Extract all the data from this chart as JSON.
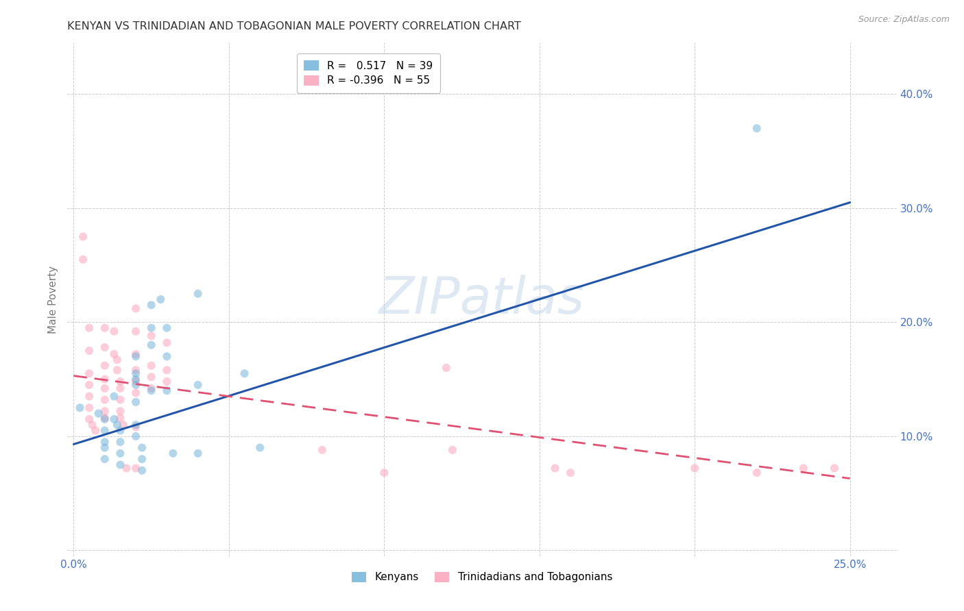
{
  "title": "KENYAN VS TRINIDADIAN AND TOBAGONIAN MALE POVERTY CORRELATION CHART",
  "source": "Source: ZipAtlas.com",
  "ylabel": "Male Poverty",
  "watermark": "ZIPatlas",
  "x_ticks": [
    0.0,
    0.05,
    0.1,
    0.15,
    0.2,
    0.25
  ],
  "y_ticks": [
    0.0,
    0.1,
    0.2,
    0.3,
    0.4
  ],
  "xlim": [
    -0.002,
    0.265
  ],
  "ylim": [
    -0.005,
    0.445
  ],
  "legend_entries": [
    {
      "label": "Kenyans",
      "r": "0.517",
      "n": "39"
    },
    {
      "label": "Trinidadians and Tobagonians",
      "r": "-0.396",
      "n": "55"
    }
  ],
  "blue_line": {
    "x0": 0.0,
    "y0": 0.093,
    "x1": 0.25,
    "y1": 0.305
  },
  "pink_line": {
    "x0": 0.0,
    "y0": 0.153,
    "x1": 0.25,
    "y1": 0.063
  },
  "blue_dots": [
    [
      0.002,
      0.125
    ],
    [
      0.008,
      0.12
    ],
    [
      0.01,
      0.105
    ],
    [
      0.01,
      0.115
    ],
    [
      0.01,
      0.09
    ],
    [
      0.01,
      0.08
    ],
    [
      0.01,
      0.095
    ],
    [
      0.013,
      0.135
    ],
    [
      0.013,
      0.115
    ],
    [
      0.014,
      0.11
    ],
    [
      0.015,
      0.105
    ],
    [
      0.015,
      0.095
    ],
    [
      0.015,
      0.085
    ],
    [
      0.015,
      0.075
    ],
    [
      0.02,
      0.17
    ],
    [
      0.02,
      0.155
    ],
    [
      0.02,
      0.15
    ],
    [
      0.02,
      0.145
    ],
    [
      0.02,
      0.13
    ],
    [
      0.02,
      0.11
    ],
    [
      0.02,
      0.1
    ],
    [
      0.022,
      0.09
    ],
    [
      0.022,
      0.08
    ],
    [
      0.022,
      0.07
    ],
    [
      0.025,
      0.215
    ],
    [
      0.025,
      0.195
    ],
    [
      0.025,
      0.18
    ],
    [
      0.025,
      0.14
    ],
    [
      0.028,
      0.22
    ],
    [
      0.03,
      0.195
    ],
    [
      0.03,
      0.17
    ],
    [
      0.03,
      0.14
    ],
    [
      0.032,
      0.085
    ],
    [
      0.04,
      0.225
    ],
    [
      0.04,
      0.145
    ],
    [
      0.04,
      0.085
    ],
    [
      0.055,
      0.155
    ],
    [
      0.06,
      0.09
    ],
    [
      0.22,
      0.37
    ]
  ],
  "pink_dots": [
    [
      0.003,
      0.275
    ],
    [
      0.003,
      0.255
    ],
    [
      0.005,
      0.195
    ],
    [
      0.005,
      0.175
    ],
    [
      0.005,
      0.155
    ],
    [
      0.005,
      0.145
    ],
    [
      0.005,
      0.135
    ],
    [
      0.005,
      0.125
    ],
    [
      0.005,
      0.115
    ],
    [
      0.006,
      0.11
    ],
    [
      0.007,
      0.105
    ],
    [
      0.01,
      0.195
    ],
    [
      0.01,
      0.178
    ],
    [
      0.01,
      0.162
    ],
    [
      0.01,
      0.15
    ],
    [
      0.01,
      0.142
    ],
    [
      0.01,
      0.132
    ],
    [
      0.01,
      0.122
    ],
    [
      0.01,
      0.116
    ],
    [
      0.013,
      0.192
    ],
    [
      0.013,
      0.172
    ],
    [
      0.014,
      0.167
    ],
    [
      0.014,
      0.158
    ],
    [
      0.015,
      0.148
    ],
    [
      0.015,
      0.142
    ],
    [
      0.015,
      0.132
    ],
    [
      0.015,
      0.122
    ],
    [
      0.015,
      0.116
    ],
    [
      0.016,
      0.11
    ],
    [
      0.017,
      0.072
    ],
    [
      0.02,
      0.212
    ],
    [
      0.02,
      0.192
    ],
    [
      0.02,
      0.172
    ],
    [
      0.02,
      0.158
    ],
    [
      0.02,
      0.148
    ],
    [
      0.02,
      0.138
    ],
    [
      0.02,
      0.108
    ],
    [
      0.02,
      0.072
    ],
    [
      0.025,
      0.188
    ],
    [
      0.025,
      0.162
    ],
    [
      0.025,
      0.152
    ],
    [
      0.025,
      0.142
    ],
    [
      0.03,
      0.182
    ],
    [
      0.03,
      0.158
    ],
    [
      0.03,
      0.148
    ],
    [
      0.08,
      0.088
    ],
    [
      0.1,
      0.068
    ],
    [
      0.12,
      0.16
    ],
    [
      0.122,
      0.088
    ],
    [
      0.155,
      0.072
    ],
    [
      0.16,
      0.068
    ],
    [
      0.2,
      0.072
    ],
    [
      0.22,
      0.068
    ],
    [
      0.235,
      0.072
    ],
    [
      0.245,
      0.072
    ]
  ],
  "background_color": "#ffffff",
  "grid_color": "#cccccc",
  "title_color": "#333333",
  "axis_color": "#4472c4",
  "dot_size": 75,
  "dot_alpha": 0.5,
  "blue_dot_color": "#6baed6",
  "pink_dot_color": "#fc9cb4",
  "line_blue_color": "#2255aa",
  "line_pink_color": "#e05070",
  "watermark_color": "#b8cfe8",
  "watermark_alpha": 0.45,
  "watermark_fontsize": 54
}
